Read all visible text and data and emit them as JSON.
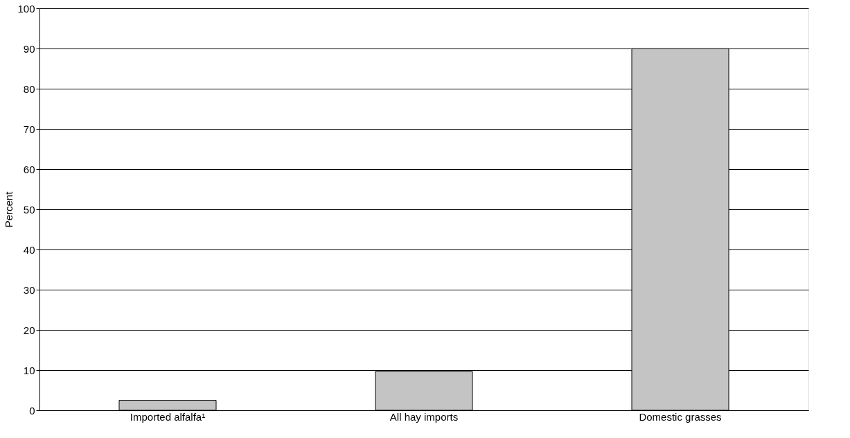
{
  "chart_data": {
    "type": "bar",
    "ylabel": "Percent",
    "categories": [
      "Imported alfalfa¹",
      "All hay imports",
      "Domestic grasses"
    ],
    "values": [
      2.5,
      9.7,
      90
    ],
    "color": "#c4c4c4",
    "ylim": [
      0,
      100
    ],
    "yticks": [
      0,
      10,
      20,
      30,
      40,
      50,
      60,
      70,
      80,
      90,
      100
    ],
    "grid": "y"
  }
}
